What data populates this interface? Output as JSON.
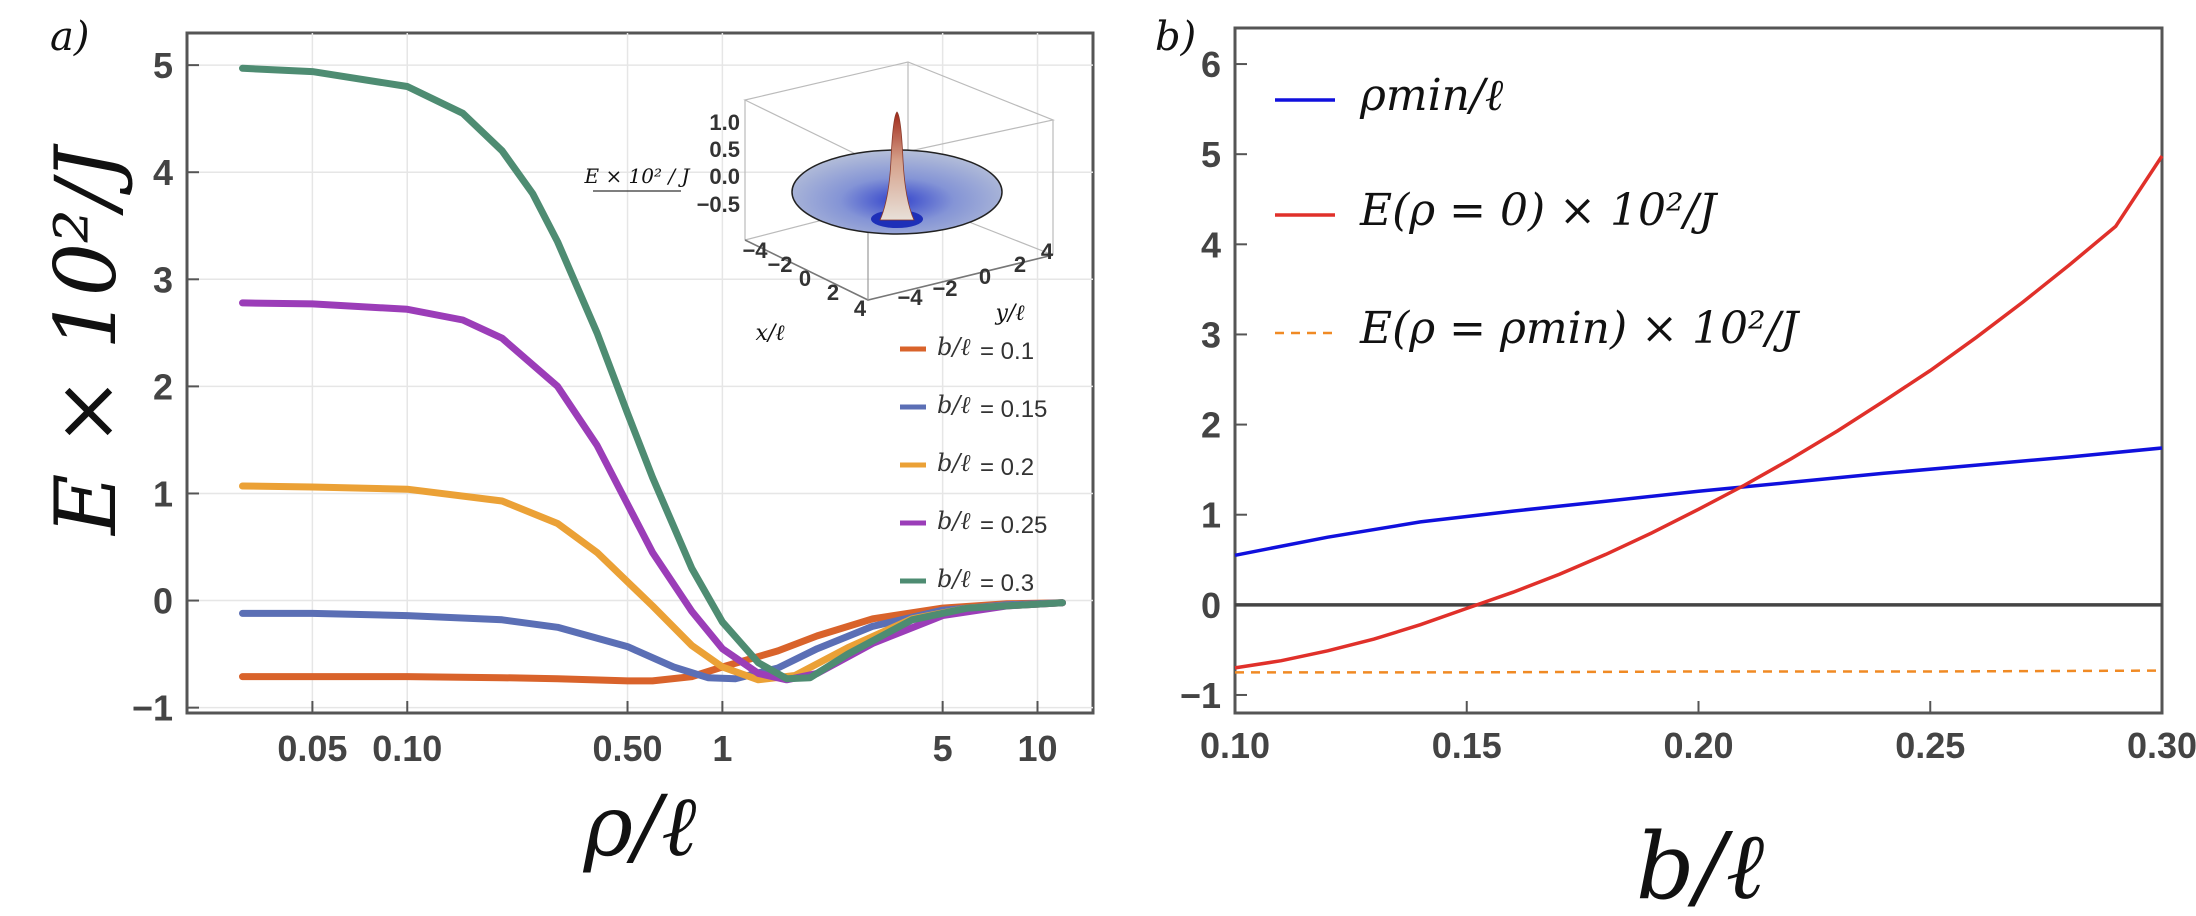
{
  "chart_data": [
    {
      "panel_label": "a)",
      "type": "line",
      "xscale": "log",
      "xlim": [
        0.02,
        15
      ],
      "ylim": [
        -1.05,
        5.3
      ],
      "xticks": [
        0.05,
        0.1,
        0.5,
        1,
        5,
        10
      ],
      "xtick_labels": [
        "0.05",
        "0.10",
        "0.50",
        "1",
        "5",
        "10"
      ],
      "yticks": [
        -1,
        0,
        1,
        2,
        3,
        4,
        5
      ],
      "ytick_labels": [
        "−1",
        "0",
        "1",
        "2",
        "3",
        "4",
        "5"
      ],
      "xlabel": "ρ/ℓ",
      "ylabel": "E × 10²/J",
      "series": [
        {
          "name": "= 0.1",
          "legend_symbol": "b/ℓ",
          "color": "#D9632B",
          "x": [
            0.03,
            0.05,
            0.1,
            0.2,
            0.3,
            0.5,
            0.6,
            0.8,
            1,
            1.5,
            2,
            3,
            5,
            8,
            12
          ],
          "y": [
            -0.71,
            -0.71,
            -0.71,
            -0.72,
            -0.73,
            -0.75,
            -0.75,
            -0.71,
            -0.62,
            -0.47,
            -0.33,
            -0.17,
            -0.07,
            -0.03,
            -0.02
          ]
        },
        {
          "name": "= 0.15",
          "legend_symbol": "b/ℓ",
          "color": "#5B6FB5",
          "x": [
            0.03,
            0.05,
            0.1,
            0.2,
            0.3,
            0.5,
            0.7,
            0.9,
            1.1,
            1.5,
            2,
            3,
            5,
            8,
            12
          ],
          "y": [
            -0.12,
            -0.12,
            -0.14,
            -0.18,
            -0.25,
            -0.43,
            -0.62,
            -0.72,
            -0.73,
            -0.63,
            -0.45,
            -0.24,
            -0.09,
            -0.04,
            -0.02
          ]
        },
        {
          "name": "= 0.2",
          "legend_symbol": "b/ℓ",
          "color": "#EBA136",
          "x": [
            0.03,
            0.05,
            0.1,
            0.2,
            0.3,
            0.4,
            0.6,
            0.8,
            1,
            1.3,
            1.7,
            2.5,
            4,
            6,
            12
          ],
          "y": [
            1.07,
            1.06,
            1.04,
            0.93,
            0.72,
            0.45,
            -0.05,
            -0.42,
            -0.62,
            -0.74,
            -0.7,
            -0.44,
            -0.17,
            -0.07,
            -0.02
          ]
        },
        {
          "name": "= 0.25",
          "legend_symbol": "b/ℓ",
          "color": "#9B3DB8",
          "x": [
            0.03,
            0.05,
            0.1,
            0.15,
            0.2,
            0.3,
            0.4,
            0.5,
            0.6,
            0.8,
            1,
            1.3,
            1.6,
            2,
            3,
            5,
            8,
            12
          ],
          "y": [
            2.78,
            2.77,
            2.72,
            2.62,
            2.45,
            2.0,
            1.45,
            0.9,
            0.45,
            -0.1,
            -0.45,
            -0.68,
            -0.74,
            -0.68,
            -0.4,
            -0.14,
            -0.05,
            -0.02
          ]
        },
        {
          "name": "= 0.3",
          "legend_symbol": "b/ℓ",
          "color": "#4E8C72",
          "x": [
            0.03,
            0.05,
            0.1,
            0.15,
            0.2,
            0.25,
            0.3,
            0.4,
            0.5,
            0.6,
            0.8,
            1,
            1.3,
            1.6,
            1.9,
            2.5,
            4,
            6,
            12
          ],
          "y": [
            4.97,
            4.94,
            4.8,
            4.55,
            4.2,
            3.8,
            3.35,
            2.5,
            1.75,
            1.15,
            0.3,
            -0.2,
            -0.58,
            -0.73,
            -0.72,
            -0.5,
            -0.18,
            -0.07,
            -0.02
          ]
        }
      ],
      "inset": {
        "zlabel": "E × 10² / J",
        "zticks": [
          "1.0",
          "0.5",
          "0.0",
          "−0.5"
        ],
        "xticks": [
          "−4",
          "−2",
          "0",
          "2",
          "4"
        ],
        "yticks": [
          "−4",
          "−2",
          "0",
          "2",
          "4"
        ],
        "xlabel": "x/ℓ",
        "ylabel": "y/ℓ"
      }
    },
    {
      "panel_label": "b)",
      "type": "line",
      "xlim": [
        0.1,
        0.3
      ],
      "ylim": [
        -1.2,
        6.4
      ],
      "xticks": [
        0.1,
        0.15,
        0.2,
        0.25,
        0.3
      ],
      "xtick_labels": [
        "0.10",
        "0.15",
        "0.20",
        "0.25",
        "0.30"
      ],
      "yticks": [
        -1,
        0,
        1,
        2,
        3,
        4,
        5,
        6
      ],
      "ytick_labels": [
        "−1",
        "0",
        "1",
        "2",
        "3",
        "4",
        "5",
        "6"
      ],
      "xlabel": "b/ℓ",
      "series": [
        {
          "name": "ρmin/ℓ",
          "color": "#1010DD",
          "style": "solid",
          "x": [
            0.1,
            0.12,
            0.14,
            0.16,
            0.18,
            0.2,
            0.22,
            0.24,
            0.26,
            0.28,
            0.3
          ],
          "y": [
            0.55,
            0.75,
            0.92,
            1.04,
            1.15,
            1.26,
            1.36,
            1.46,
            1.55,
            1.64,
            1.74
          ]
        },
        {
          "name": "E(ρ = 0) × 10²/J",
          "color": "#E0302A",
          "style": "solid",
          "x": [
            0.1,
            0.11,
            0.12,
            0.13,
            0.14,
            0.15,
            0.16,
            0.17,
            0.18,
            0.19,
            0.2,
            0.21,
            0.22,
            0.23,
            0.24,
            0.25,
            0.26,
            0.27,
            0.28,
            0.29,
            0.3
          ],
          "y": [
            -0.7,
            -0.62,
            -0.51,
            -0.38,
            -0.22,
            -0.04,
            0.14,
            0.34,
            0.56,
            0.8,
            1.06,
            1.33,
            1.62,
            1.93,
            2.26,
            2.6,
            2.97,
            3.36,
            3.77,
            4.2,
            4.98
          ]
        },
        {
          "name": "E(ρ = ρmin) × 10²/J",
          "color": "#F08A24",
          "style": "dashed",
          "x": [
            0.1,
            0.15,
            0.2,
            0.25,
            0.3
          ],
          "y": [
            -0.75,
            -0.75,
            -0.74,
            -0.74,
            -0.73
          ]
        }
      ],
      "zero_line": true
    }
  ]
}
